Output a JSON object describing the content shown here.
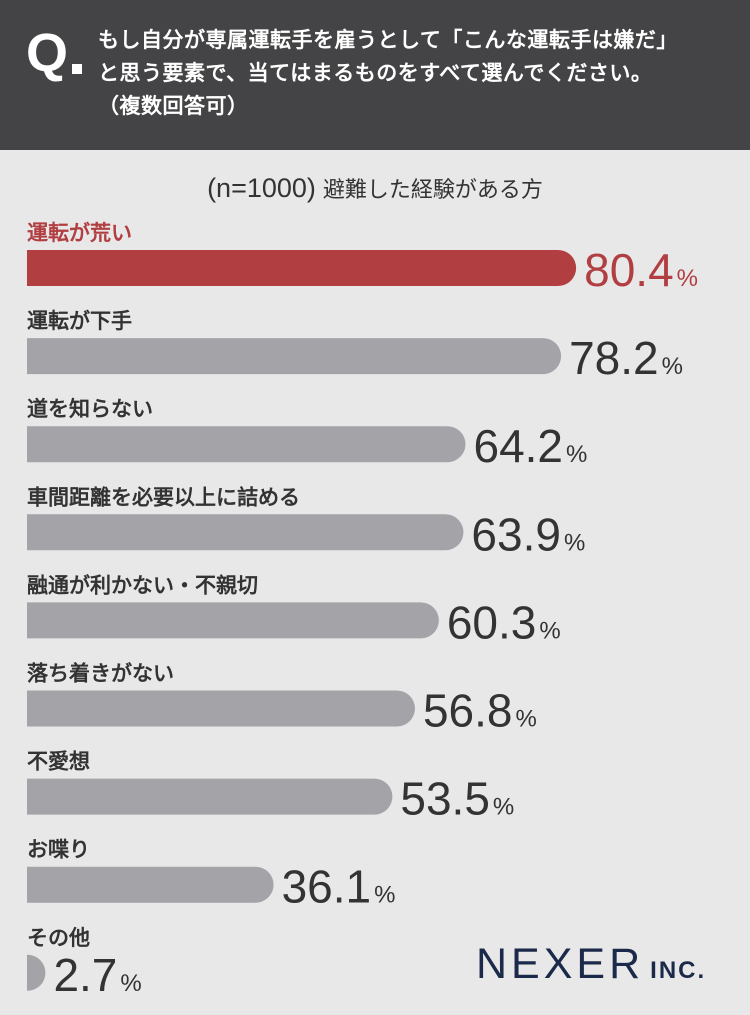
{
  "header": {
    "q_label": "Q",
    "question_lines": [
      "もし自分が専属運転手を雇うとして「こんな運転手は嫌だ」",
      "と思う要素で、当てはまるものをすべて選んでください。",
      "（複数回答可）"
    ]
  },
  "subtitle": {
    "n_text": "(n=1000)",
    "group_text": "避難した経験がある方"
  },
  "colors": {
    "highlight": "#b13f42",
    "bar": "#a3a3a8",
    "text": "#333333",
    "header_bg": "#444446"
  },
  "chart_data": {
    "type": "bar",
    "orientation": "horizontal",
    "categories": [
      "運転が荒い",
      "運転が下手",
      "道を知らない",
      "車間距離を必要以上に詰める",
      "融通が利かない・不親切",
      "落ち着きがない",
      "不愛想",
      "お喋り",
      "その他"
    ],
    "values": [
      80.4,
      78.2,
      64.2,
      63.9,
      60.3,
      56.8,
      53.5,
      36.1,
      2.7
    ],
    "value_labels": [
      "80.4",
      "78.2",
      "64.2",
      "63.9",
      "60.3",
      "56.8",
      "53.5",
      "36.1",
      "2.7"
    ],
    "unit": "%",
    "highlight_index": 0
  },
  "logo": {
    "main": "NEXER",
    "suffix": "INC."
  }
}
